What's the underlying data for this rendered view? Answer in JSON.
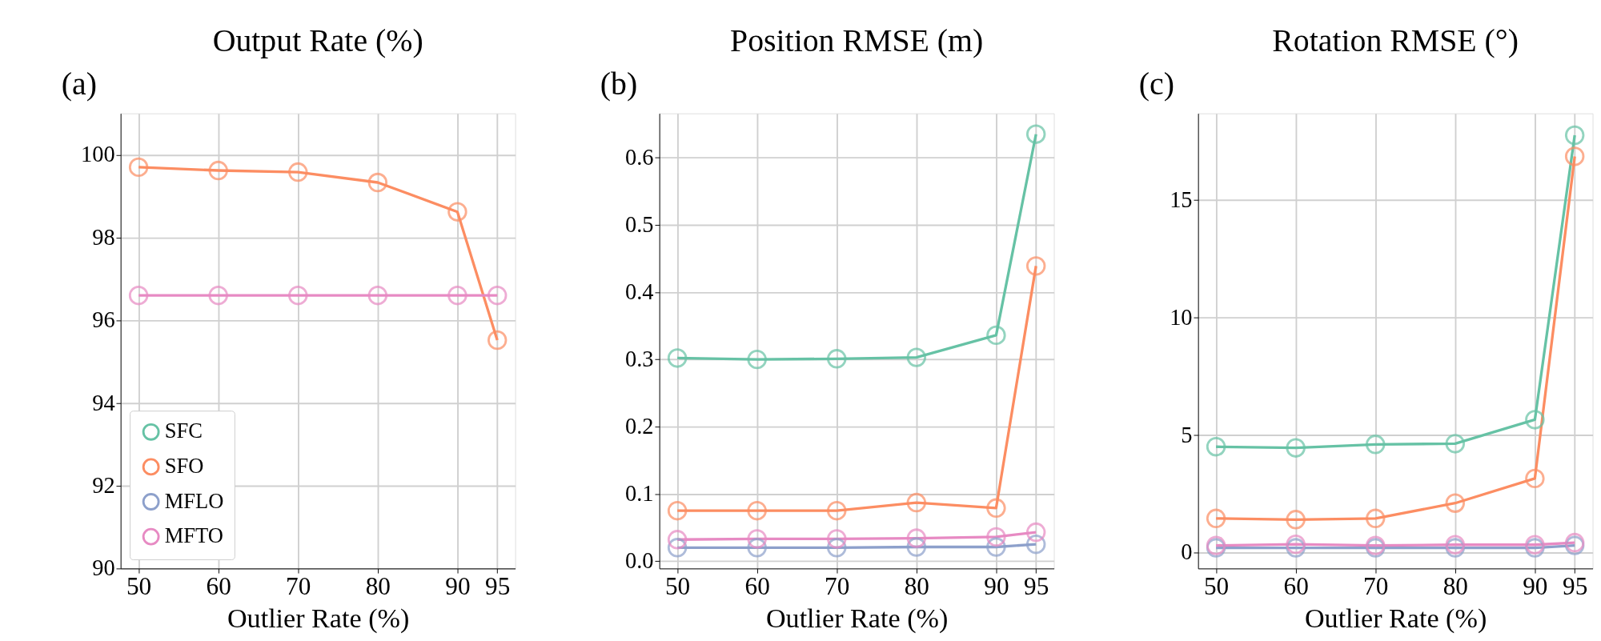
{
  "chart_data": [
    {
      "type": "line",
      "title": "Output Rate (%)",
      "xlabel": "Outlier Rate (%)",
      "annotations": [
        "(a)"
      ],
      "x": [
        50,
        60,
        70,
        80,
        90,
        95
      ],
      "xlim": [
        47.75,
        97.25
      ],
      "xticks": [
        50,
        60,
        70,
        80,
        90,
        95
      ],
      "ylim": [
        90,
        101
      ],
      "yticks": [
        90,
        92,
        94,
        96,
        98,
        100
      ],
      "grid": true,
      "marker": "circle",
      "legend": "bottom left",
      "series": [
        {
          "name": "SFC",
          "color": "#66c2a5",
          "values": [
            null,
            null,
            null,
            null,
            null,
            null
          ]
        },
        {
          "name": "SFO",
          "color": "#fc8d62",
          "values": [
            99.7,
            99.62,
            99.58,
            99.33,
            98.62,
            95.52
          ]
        },
        {
          "name": "MFLO",
          "color": "#8da0cb",
          "values": [
            null,
            null,
            null,
            null,
            null,
            null
          ]
        },
        {
          "name": "MFTO",
          "color": "#e78ac3",
          "values": [
            96.6,
            96.6,
            96.6,
            96.6,
            96.6,
            96.6
          ]
        }
      ]
    },
    {
      "type": "line",
      "title": "Position RMSE (m)",
      "xlabel": "Outlier Rate (%)",
      "annotations": [
        "(b)"
      ],
      "x": [
        50,
        60,
        70,
        80,
        90,
        95
      ],
      "xlim": [
        47.75,
        97.25
      ],
      "xticks": [
        50,
        60,
        70,
        80,
        90,
        95
      ],
      "ylim": [
        -0.011,
        0.666
      ],
      "yticks": [
        {
          "value": 0,
          "label": "0.0"
        },
        0.1,
        0.2,
        0.3,
        0.4,
        0.5,
        0.6
      ],
      "grid": true,
      "marker": "circle",
      "series": [
        {
          "color": "#66c2a5",
          "values": [
            0.302,
            0.3,
            0.301,
            0.303,
            0.336,
            0.635
          ]
        },
        {
          "color": "#fc8d62",
          "values": [
            0.075,
            0.075,
            0.075,
            0.087,
            0.079,
            0.439
          ]
        },
        {
          "color": "#8da0cb",
          "values": [
            0.02,
            0.02,
            0.02,
            0.021,
            0.021,
            0.025
          ]
        },
        {
          "color": "#e78ac3",
          "values": [
            0.032,
            0.033,
            0.033,
            0.034,
            0.036,
            0.043
          ]
        }
      ]
    },
    {
      "type": "line",
      "title": "Rotation RMSE (°)",
      "xlabel": "Outlier Rate (%)",
      "annotations": [
        "(c)"
      ],
      "x": [
        50,
        60,
        70,
        80,
        90,
        95
      ],
      "xlim": [
        47.75,
        97.25
      ],
      "xticks": [
        50,
        60,
        70,
        80,
        90,
        95
      ],
      "ylim": [
        -0.68,
        18.68
      ],
      "yticks": [
        0,
        5,
        10,
        15
      ],
      "grid": true,
      "marker": "circle",
      "series": [
        {
          "color": "#66c2a5",
          "values": [
            4.5,
            4.45,
            4.6,
            4.63,
            5.65,
            17.75
          ]
        },
        {
          "color": "#fc8d62",
          "values": [
            1.45,
            1.4,
            1.45,
            2.1,
            3.15,
            16.85
          ]
        },
        {
          "color": "#8da0cb",
          "values": [
            0.2,
            0.2,
            0.2,
            0.2,
            0.2,
            0.3
          ]
        },
        {
          "color": "#e78ac3",
          "values": [
            0.3,
            0.35,
            0.3,
            0.33,
            0.33,
            0.42
          ]
        }
      ]
    }
  ]
}
